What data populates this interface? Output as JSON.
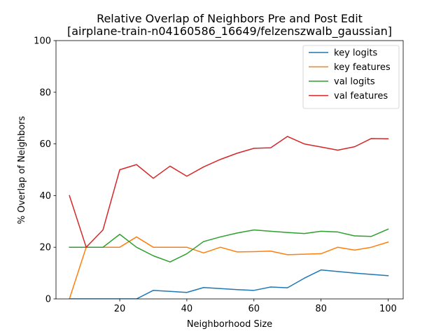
{
  "chart_data": {
    "type": "line",
    "title": "Relative Overlap of Neighbors Pre and Post Edit",
    "subtitle": "[airplane-train-n04160586_16649/felzenszwalb_gaussian]",
    "xlabel": "Neighborhood Size",
    "ylabel": "% Overlap of Neighbors",
    "xlim": [
      1,
      104.5
    ],
    "ylim": [
      0,
      100
    ],
    "xticks": [
      20,
      40,
      60,
      80,
      100
    ],
    "yticks": [
      0,
      20,
      40,
      60,
      80,
      100
    ],
    "grid": false,
    "legend_position": "top-right",
    "x": [
      5,
      10,
      15,
      20,
      25,
      30,
      35,
      40,
      45,
      50,
      55,
      60,
      65,
      70,
      75,
      80,
      85,
      90,
      95,
      100
    ],
    "series": [
      {
        "name": "key logits",
        "color": "#1f77b4",
        "values": [
          0,
          0,
          0,
          0,
          0,
          3.3,
          2.9,
          2.5,
          4.4,
          4.0,
          3.6,
          3.3,
          4.6,
          4.3,
          8.0,
          11.2,
          10.6,
          10.0,
          9.5,
          9.0
        ]
      },
      {
        "name": "key features",
        "color": "#ff7f0e",
        "values": [
          0,
          20,
          20,
          20,
          24,
          20,
          20,
          20,
          17.8,
          20,
          18.2,
          18.3,
          18.5,
          17.1,
          17.3,
          17.5,
          20,
          18.9,
          20,
          22
        ]
      },
      {
        "name": "val logits",
        "color": "#2ca02c",
        "values": [
          20,
          20,
          20,
          25,
          20,
          16.7,
          14.3,
          17.5,
          22.2,
          24,
          25.5,
          26.7,
          26.2,
          25.7,
          25.3,
          26.2,
          25.9,
          24.4,
          24.2,
          27
        ]
      },
      {
        "name": "val features",
        "color": "#d62728",
        "values": [
          40,
          20,
          26.7,
          50,
          52,
          46.7,
          51.4,
          47.5,
          51.1,
          54,
          56.4,
          58.3,
          58.5,
          62.9,
          60,
          58.8,
          57.6,
          58.9,
          62.1,
          62
        ]
      }
    ]
  }
}
